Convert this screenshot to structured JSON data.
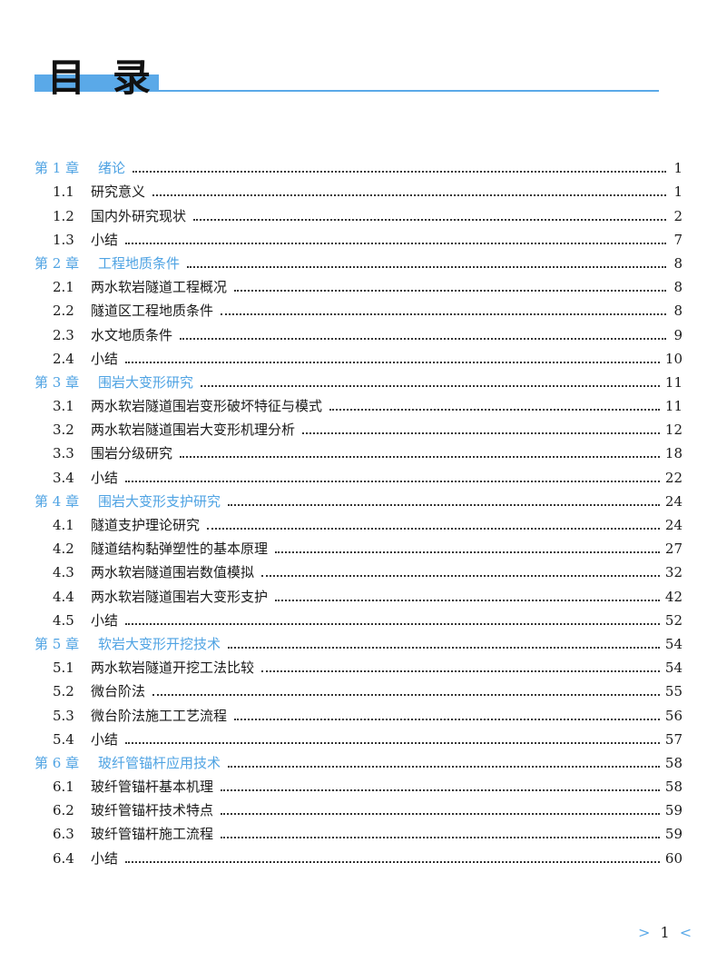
{
  "title": "目录",
  "title_chars": [
    "目",
    "录"
  ],
  "accent_color": "#5aa9e8",
  "entries": [
    {
      "type": "chapter",
      "num": "第 1 章",
      "label": "绪论",
      "page": "1"
    },
    {
      "type": "section",
      "num": "1.1",
      "label": "研究意义",
      "page": "1"
    },
    {
      "type": "section",
      "num": "1.2",
      "label": "国内外研究现状",
      "page": "2"
    },
    {
      "type": "section",
      "num": "1.3",
      "label": "小结",
      "page": "7"
    },
    {
      "type": "chapter",
      "num": "第 2 章",
      "label": "工程地质条件",
      "page": "8"
    },
    {
      "type": "section",
      "num": "2.1",
      "label": "两水软岩隧道工程概况",
      "page": "8"
    },
    {
      "type": "section",
      "num": "2.2",
      "label": "隧道区工程地质条件",
      "page": "8"
    },
    {
      "type": "section",
      "num": "2.3",
      "label": "水文地质条件",
      "page": "9"
    },
    {
      "type": "section",
      "num": "2.4",
      "label": "小结",
      "page": "10"
    },
    {
      "type": "chapter",
      "num": "第 3 章",
      "label": "围岩大变形研究",
      "page": "11"
    },
    {
      "type": "section",
      "num": "3.1",
      "label": "两水软岩隧道围岩变形破坏特征与模式",
      "page": "11"
    },
    {
      "type": "section",
      "num": "3.2",
      "label": "两水软岩隧道围岩大变形机理分析",
      "page": "12"
    },
    {
      "type": "section",
      "num": "3.3",
      "label": "围岩分级研究",
      "page": "18"
    },
    {
      "type": "section",
      "num": "3.4",
      "label": "小结",
      "page": "22"
    },
    {
      "type": "chapter",
      "num": "第 4 章",
      "label": "围岩大变形支护研究",
      "page": "24"
    },
    {
      "type": "section",
      "num": "4.1",
      "label": "隧道支护理论研究",
      "page": "24"
    },
    {
      "type": "section",
      "num": "4.2",
      "label": "隧道结构黏弹塑性的基本原理",
      "page": "27"
    },
    {
      "type": "section",
      "num": "4.3",
      "label": "两水软岩隧道围岩数值模拟",
      "page": "32"
    },
    {
      "type": "section",
      "num": "4.4",
      "label": "两水软岩隧道围岩大变形支护",
      "page": "42"
    },
    {
      "type": "section",
      "num": "4.5",
      "label": "小结",
      "page": "52"
    },
    {
      "type": "chapter",
      "num": "第 5 章",
      "label": "软岩大变形开挖技术",
      "page": "54"
    },
    {
      "type": "section",
      "num": "5.1",
      "label": "两水软岩隧道开挖工法比较",
      "page": "54"
    },
    {
      "type": "section",
      "num": "5.2",
      "label": "微台阶法",
      "page": "55"
    },
    {
      "type": "section",
      "num": "5.3",
      "label": "微台阶法施工工艺流程",
      "page": "56"
    },
    {
      "type": "section",
      "num": "5.4",
      "label": "小结",
      "page": "57"
    },
    {
      "type": "chapter",
      "num": "第 6 章",
      "label": "玻纤管锚杆应用技术",
      "page": "58"
    },
    {
      "type": "section",
      "num": "6.1",
      "label": "玻纤管锚杆基本机理",
      "page": "58"
    },
    {
      "type": "section",
      "num": "6.2",
      "label": "玻纤管锚杆技术特点",
      "page": "59"
    },
    {
      "type": "section",
      "num": "6.3",
      "label": "玻纤管锚杆施工流程",
      "page": "59"
    },
    {
      "type": "section",
      "num": "6.4",
      "label": "小结",
      "page": "60"
    }
  ],
  "footer": {
    "left_arrow": ">",
    "page": "1",
    "right_arrow": "<"
  }
}
